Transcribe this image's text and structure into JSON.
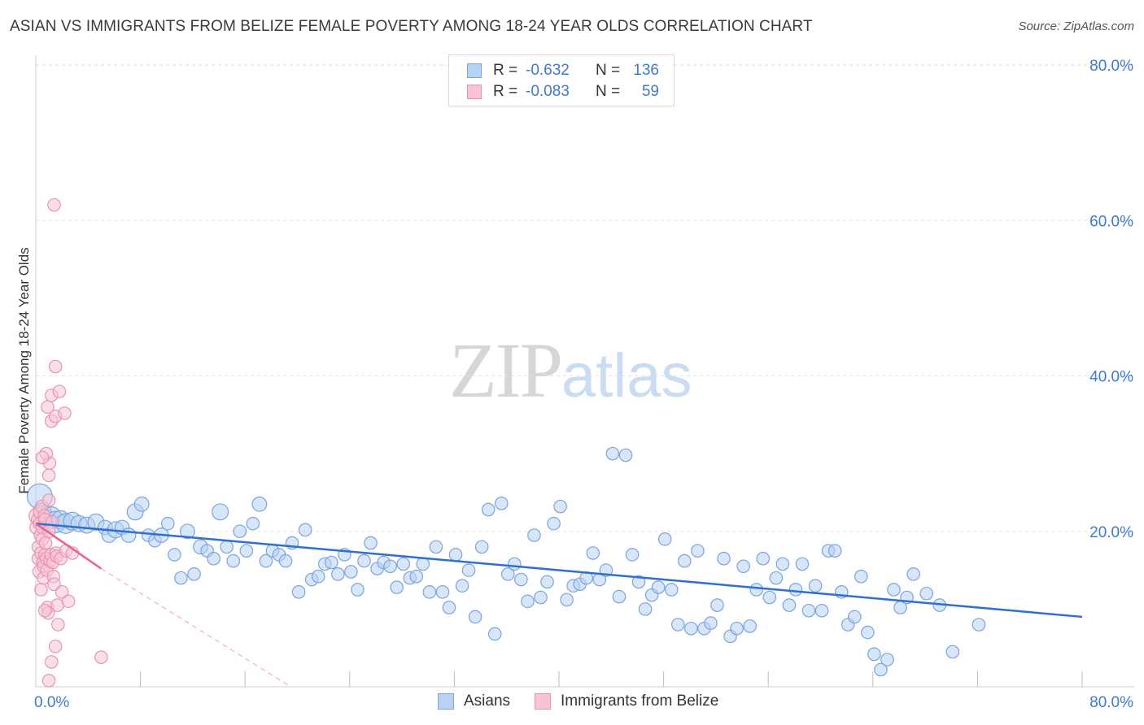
{
  "title": "ASIAN VS IMMIGRANTS FROM BELIZE FEMALE POVERTY AMONG 18-24 YEAR OLDS CORRELATION CHART",
  "source": "Source: ZipAtlas.com",
  "watermark": {
    "zip": "ZIP",
    "atlas": "atlas"
  },
  "colors": {
    "asians_fill": "#b8d2f4",
    "asians_stroke": "#7aa4dd",
    "asians_line": "#2f6fcf",
    "belize_fill": "#f8c4d4",
    "belize_stroke": "#e993b0",
    "belize_line": "#e8628d",
    "grid": "#e2e2e2",
    "tick_label": "#3f78d1"
  },
  "legend": {
    "r_label": "R =",
    "n_label": "N =",
    "asians": {
      "r": "-0.632",
      "n": "136"
    },
    "belize": {
      "r": "-0.083",
      "n": "59"
    }
  },
  "chart_data": {
    "type": "scatter",
    "title": "ASIAN VS IMMIGRANTS FROM BELIZE FEMALE POVERTY AMONG 18-24 YEAR OLDS CORRELATION CHART",
    "xlabel": "",
    "ylabel": "Female Poverty Among 18-24 Year Olds",
    "xlim": [
      0,
      80
    ],
    "ylim": [
      0,
      80
    ],
    "x_tick_labels": [
      "0.0%",
      "80.0%"
    ],
    "y_ticks": [
      20,
      40,
      60,
      80
    ],
    "y_tick_labels": [
      "20.0%",
      "40.0%",
      "60.0%",
      "80.0%"
    ],
    "grid": true,
    "legend_position": "top-center",
    "series": [
      {
        "name": "Asians",
        "trend": {
          "x": [
            0,
            80
          ],
          "y": [
            21.0,
            9.0
          ]
        },
        "points": [
          [
            0.3,
            24.5,
            14
          ],
          [
            0.5,
            22.5,
            10
          ],
          [
            0.8,
            21.8,
            9
          ],
          [
            1.2,
            22.0,
            10
          ],
          [
            1.5,
            21.2,
            12
          ],
          [
            1.9,
            21.5,
            10
          ],
          [
            2.3,
            21.0,
            11
          ],
          [
            2.8,
            21.3,
            10
          ],
          [
            3.3,
            21.0,
            9
          ],
          [
            3.9,
            20.8,
            9
          ],
          [
            4.6,
            21.2,
            9
          ],
          [
            5.3,
            20.5,
            8
          ],
          [
            5.6,
            19.5,
            8
          ],
          [
            6.1,
            20.2,
            9
          ],
          [
            6.6,
            20.5,
            8
          ],
          [
            7.1,
            19.5,
            8
          ],
          [
            7.6,
            22.5,
            9
          ],
          [
            8.1,
            23.5,
            8
          ],
          [
            8.6,
            19.5,
            7
          ],
          [
            9.1,
            18.8,
            7
          ],
          [
            9.6,
            19.5,
            8
          ],
          [
            10.1,
            21.0,
            7
          ],
          [
            10.6,
            17.0,
            7
          ],
          [
            11.1,
            14.0,
            7
          ],
          [
            11.6,
            20.0,
            8
          ],
          [
            12.1,
            14.5,
            7
          ],
          [
            12.6,
            18.0,
            8
          ],
          [
            13.1,
            17.5,
            7
          ],
          [
            13.6,
            16.5,
            7
          ],
          [
            14.1,
            22.5,
            9
          ],
          [
            14.6,
            18.0,
            7
          ],
          [
            15.1,
            16.2,
            7
          ],
          [
            15.6,
            20.0,
            7
          ],
          [
            16.1,
            17.5,
            7
          ],
          [
            16.6,
            21.0,
            7
          ],
          [
            17.1,
            23.5,
            8
          ],
          [
            17.6,
            16.2,
            7
          ],
          [
            18.1,
            17.5,
            7
          ],
          [
            18.6,
            17.0,
            7
          ],
          [
            19.1,
            16.2,
            7
          ],
          [
            19.6,
            18.5,
            7
          ],
          [
            20.1,
            12.2,
            7
          ],
          [
            20.6,
            20.2,
            7
          ],
          [
            21.1,
            13.8,
            7
          ],
          [
            21.6,
            14.2,
            7
          ],
          [
            22.1,
            15.8,
            7
          ],
          [
            22.6,
            16.0,
            7
          ],
          [
            23.1,
            14.5,
            7
          ],
          [
            23.6,
            17.0,
            7
          ],
          [
            24.1,
            14.8,
            7
          ],
          [
            24.6,
            12.5,
            7
          ],
          [
            25.1,
            16.2,
            7
          ],
          [
            25.6,
            18.5,
            7
          ],
          [
            26.1,
            15.2,
            7
          ],
          [
            26.6,
            16.0,
            7
          ],
          [
            27.1,
            15.5,
            7
          ],
          [
            27.6,
            12.8,
            7
          ],
          [
            28.1,
            15.8,
            7
          ],
          [
            28.6,
            14.0,
            7
          ],
          [
            29.1,
            14.2,
            7
          ],
          [
            29.6,
            15.8,
            7
          ],
          [
            30.1,
            12.2,
            7
          ],
          [
            30.6,
            18.0,
            7
          ],
          [
            31.1,
            12.2,
            7
          ],
          [
            31.6,
            10.2,
            7
          ],
          [
            32.1,
            17.0,
            7
          ],
          [
            32.6,
            13.0,
            7
          ],
          [
            33.1,
            15.0,
            7
          ],
          [
            33.6,
            9.0,
            7
          ],
          [
            34.1,
            18.0,
            7
          ],
          [
            34.6,
            22.8,
            7
          ],
          [
            35.1,
            6.8,
            7
          ],
          [
            35.6,
            23.6,
            7
          ],
          [
            36.1,
            14.5,
            7
          ],
          [
            36.6,
            15.8,
            7
          ],
          [
            37.1,
            13.8,
            7
          ],
          [
            37.6,
            11.0,
            7
          ],
          [
            38.1,
            19.5,
            7
          ],
          [
            38.6,
            11.5,
            7
          ],
          [
            39.1,
            13.5,
            7
          ],
          [
            39.6,
            21.0,
            7
          ],
          [
            40.1,
            23.2,
            7
          ],
          [
            40.6,
            11.2,
            7
          ],
          [
            41.1,
            13.0,
            7
          ],
          [
            41.6,
            13.2,
            7
          ],
          [
            42.1,
            14.0,
            7
          ],
          [
            42.6,
            17.2,
            7
          ],
          [
            43.1,
            13.8,
            7
          ],
          [
            43.6,
            15.0,
            7
          ],
          [
            44.1,
            30.0,
            7
          ],
          [
            44.6,
            11.6,
            7
          ],
          [
            45.1,
            29.8,
            7
          ],
          [
            45.6,
            17.0,
            7
          ],
          [
            46.1,
            13.5,
            7
          ],
          [
            46.6,
            10.0,
            7
          ],
          [
            47.1,
            11.8,
            7
          ],
          [
            47.6,
            12.8,
            7
          ],
          [
            48.1,
            19.0,
            7
          ],
          [
            48.6,
            12.5,
            7
          ],
          [
            49.1,
            8.0,
            7
          ],
          [
            49.6,
            16.2,
            7
          ],
          [
            50.1,
            7.5,
            7
          ],
          [
            50.6,
            17.5,
            7
          ],
          [
            51.1,
            7.5,
            7
          ],
          [
            51.6,
            8.2,
            7
          ],
          [
            52.1,
            10.5,
            7
          ],
          [
            52.6,
            16.5,
            7
          ],
          [
            53.1,
            6.5,
            7
          ],
          [
            53.6,
            7.5,
            7
          ],
          [
            54.1,
            15.5,
            7
          ],
          [
            54.6,
            7.8,
            7
          ],
          [
            55.1,
            12.5,
            7
          ],
          [
            55.6,
            16.5,
            7
          ],
          [
            56.1,
            11.5,
            7
          ],
          [
            56.6,
            14.0,
            7
          ],
          [
            57.1,
            15.8,
            7
          ],
          [
            57.6,
            10.5,
            7
          ],
          [
            58.1,
            12.5,
            7
          ],
          [
            58.6,
            15.8,
            7
          ],
          [
            59.1,
            9.8,
            7
          ],
          [
            59.6,
            13.0,
            7
          ],
          [
            60.1,
            9.8,
            7
          ],
          [
            60.6,
            17.5,
            7
          ],
          [
            61.1,
            17.5,
            7
          ],
          [
            61.6,
            12.2,
            7
          ],
          [
            62.1,
            8.0,
            7
          ],
          [
            62.6,
            9.0,
            7
          ],
          [
            63.1,
            14.2,
            7
          ],
          [
            63.6,
            7.0,
            7
          ],
          [
            64.1,
            4.2,
            7
          ],
          [
            64.6,
            2.2,
            7
          ],
          [
            65.1,
            3.5,
            7
          ],
          [
            65.6,
            12.5,
            7
          ],
          [
            66.1,
            10.2,
            7
          ],
          [
            66.6,
            11.5,
            7
          ],
          [
            67.1,
            14.5,
            7
          ],
          [
            68.1,
            12.0,
            7
          ],
          [
            69.1,
            10.5,
            7
          ],
          [
            70.1,
            4.5,
            7
          ],
          [
            72.1,
            8.0,
            7
          ]
        ]
      },
      {
        "name": "Immigrants from Belize",
        "trend": {
          "x": [
            0,
            5.0
          ],
          "y": [
            21.0,
            15.2
          ]
        },
        "trend_extended": {
          "x": [
            5.0,
            19.5
          ],
          "y": [
            15.2,
            0
          ]
        },
        "points": [
          [
            0.1,
            22.0,
            9
          ],
          [
            0.1,
            20.5,
            8
          ],
          [
            0.15,
            21.5,
            7
          ],
          [
            0.2,
            18.0,
            7
          ],
          [
            0.2,
            16.5,
            7
          ],
          [
            0.25,
            14.8,
            7
          ],
          [
            0.3,
            22.5,
            7
          ],
          [
            0.3,
            21.0,
            7
          ],
          [
            0.35,
            19.5,
            7
          ],
          [
            0.4,
            17.2,
            7
          ],
          [
            0.4,
            12.5,
            7
          ],
          [
            0.45,
            23.2,
            7
          ],
          [
            0.5,
            20.5,
            7
          ],
          [
            0.5,
            19.0,
            7
          ],
          [
            0.55,
            16.0,
            7
          ],
          [
            0.6,
            15.5,
            7
          ],
          [
            0.6,
            14.0,
            7
          ],
          [
            0.65,
            22.0,
            7
          ],
          [
            0.7,
            21.5,
            7
          ],
          [
            0.7,
            17.0,
            7
          ],
          [
            0.75,
            18.5,
            7
          ],
          [
            0.8,
            16.5,
            7
          ],
          [
            0.85,
            15.0,
            7
          ],
          [
            0.9,
            10.2,
            7
          ],
          [
            0.95,
            9.5,
            7
          ],
          [
            1.0,
            24.0,
            7
          ],
          [
            1.0,
            27.2,
            7
          ],
          [
            1.05,
            28.8,
            7
          ],
          [
            1.1,
            16.2,
            7
          ],
          [
            1.15,
            17.0,
            7
          ],
          [
            1.2,
            37.5,
            7
          ],
          [
            1.2,
            34.2,
            7
          ],
          [
            1.25,
            21.2,
            7
          ],
          [
            1.3,
            16.0,
            7
          ],
          [
            1.35,
            14.2,
            7
          ],
          [
            1.4,
            13.2,
            7
          ],
          [
            1.5,
            41.2,
            7
          ],
          [
            1.5,
            34.8,
            7
          ],
          [
            1.55,
            17.2,
            7
          ],
          [
            1.6,
            16.8,
            7
          ],
          [
            1.65,
            10.5,
            7
          ],
          [
            1.7,
            8.0,
            7
          ],
          [
            1.8,
            38.0,
            7
          ],
          [
            1.9,
            16.5,
            7
          ],
          [
            2.0,
            12.2,
            7
          ],
          [
            2.2,
            35.2,
            7
          ],
          [
            2.3,
            17.5,
            7
          ],
          [
            2.5,
            11.0,
            7
          ],
          [
            2.8,
            17.2,
            7
          ],
          [
            0.8,
            30.0,
            7
          ],
          [
            0.9,
            36.0,
            7
          ],
          [
            1.0,
            0.8,
            7
          ],
          [
            1.5,
            5.2,
            7
          ],
          [
            1.2,
            3.2,
            7
          ],
          [
            5.0,
            3.8,
            7
          ],
          [
            1.4,
            62.0,
            7
          ],
          [
            0.5,
            29.5,
            7
          ],
          [
            0.7,
            9.8,
            7
          ],
          [
            1.0,
            20.0,
            7
          ]
        ]
      }
    ]
  }
}
